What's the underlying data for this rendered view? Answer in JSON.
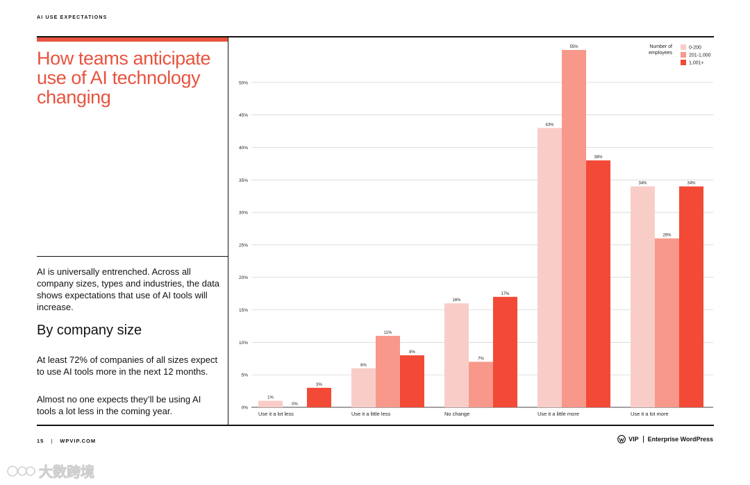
{
  "section_label": "AI USE EXPECTATIONS",
  "headline": "How teams anticipate use of AI technology changing",
  "intro": "AI is universally entrenched. Across all company sizes, types and industries, the data shows expectations that use of AI tools will increase.",
  "subhead": "By company size",
  "paragraphs": [
    "At least 72% of companies of all sizes expect to use AI tools more in the next 12 months.",
    "Almost no one expects they’ll be using AI tools a lot less in the coming year."
  ],
  "footer": {
    "page_number": "15",
    "separator": "|",
    "site": "WPVIP.COM",
    "brand_vip": "VIP",
    "brand_name": "Enterprise WordPress"
  },
  "watermark": {
    "text": "大数跨境",
    "icon": "watermark-logo-icon"
  },
  "colors": {
    "accent": "#e8533f",
    "series": [
      "#f9cdc7",
      "#f7988a",
      "#f24a36"
    ]
  },
  "chart_data": {
    "type": "bar",
    "categories": [
      "Use it a lot less",
      "Use it a little less",
      "No change",
      "Use it a little more",
      "Use it a lot more"
    ],
    "series": [
      {
        "name": "0-200",
        "values": [
          1,
          6,
          16,
          43,
          34
        ],
        "labels": [
          "1%",
          "6%",
          "16%",
          "43%",
          "34%"
        ]
      },
      {
        "name": "201-1,000",
        "values": [
          0,
          11,
          7,
          55,
          26
        ],
        "labels": [
          "0%",
          "11%",
          "7%",
          "55%",
          "26%"
        ]
      },
      {
        "name": "1,001+",
        "values": [
          3,
          8,
          17,
          38,
          34
        ],
        "labels": [
          "3%",
          "8%",
          "17%",
          "38%",
          "34%"
        ]
      }
    ],
    "legend_title": [
      "Number of",
      "employees"
    ],
    "legend_position": "top-right",
    "ylim": [
      0,
      55
    ],
    "yticks": [
      0,
      5,
      10,
      15,
      20,
      25,
      30,
      35,
      40,
      45,
      50
    ],
    "ytick_labels": [
      "0%",
      "5%",
      "10%",
      "15%",
      "20%",
      "25%",
      "30%",
      "35%",
      "40%",
      "45%",
      "50%"
    ],
    "grid": true
  }
}
